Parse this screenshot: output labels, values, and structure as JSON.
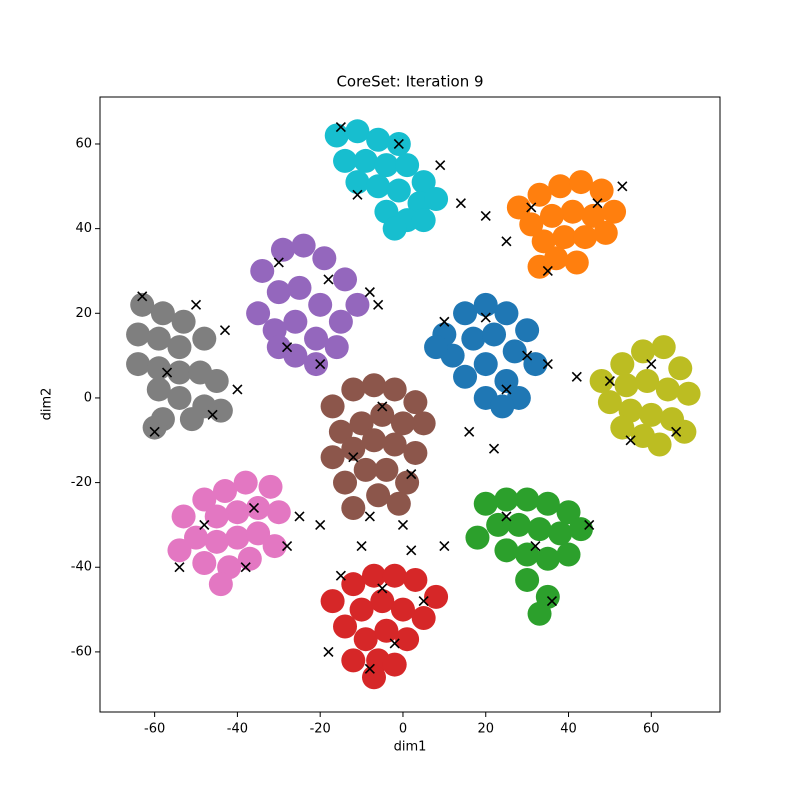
{
  "chart_data": {
    "type": "scatter",
    "title": "CoreSet: Iteration 9",
    "x_label": "dim1",
    "y_label": "dim2",
    "xlim": [
      -73.2,
      76.6
    ],
    "ylim": [
      -74.2,
      71.1
    ],
    "xticks": [
      -60,
      -40,
      -20,
      0,
      20,
      40,
      60
    ],
    "yticks": [
      -60,
      -40,
      -20,
      0,
      20,
      40,
      60
    ],
    "grid": false,
    "series": [
      {
        "color": "#1f77b4",
        "marker": "o",
        "x": [
          10,
          15,
          20,
          25,
          30,
          12,
          17,
          22,
          27,
          32,
          15,
          20,
          25,
          20,
          28,
          8,
          24
        ],
        "y": [
          15,
          20,
          22,
          20,
          16,
          10,
          14,
          15,
          11,
          8,
          5,
          8,
          4,
          0,
          0,
          12,
          -2
        ]
      },
      {
        "color": "#ff7f0e",
        "marker": "o",
        "x": [
          28,
          33,
          38,
          43,
          48,
          51,
          46,
          41,
          36,
          31,
          34,
          39,
          44,
          49,
          37,
          42,
          33
        ],
        "y": [
          45,
          48,
          50,
          51,
          49,
          44,
          43,
          44,
          43,
          41,
          37,
          38,
          38,
          39,
          33,
          32,
          31
        ]
      },
      {
        "color": "#2ca02c",
        "marker": "o",
        "x": [
          20,
          25,
          30,
          35,
          40,
          43,
          38,
          33,
          28,
          23,
          18,
          25,
          30,
          35,
          40,
          30,
          35,
          33
        ],
        "y": [
          -25,
          -24,
          -24,
          -25,
          -27,
          -31,
          -32,
          -31,
          -30,
          -30,
          -33,
          -36,
          -37,
          -38,
          -37,
          -43,
          -47,
          -51
        ]
      },
      {
        "color": "#d62728",
        "marker": "o",
        "x": [
          -17,
          -12,
          -7,
          -2,
          3,
          8,
          5,
          0,
          -5,
          -10,
          -14,
          -9,
          -4,
          1,
          -12,
          -6,
          -2,
          -7
        ],
        "y": [
          -48,
          -44,
          -42,
          -42,
          -43,
          -47,
          -52,
          -50,
          -48,
          -50,
          -54,
          -57,
          -55,
          -57,
          -62,
          -62,
          -63,
          -66
        ]
      },
      {
        "color": "#9467bd",
        "marker": "o",
        "x": [
          -34,
          -29,
          -24,
          -19,
          -14,
          -11,
          -15,
          -20,
          -25,
          -30,
          -35,
          -31,
          -26,
          -21,
          -16,
          -26,
          -21,
          -30
        ],
        "y": [
          30,
          35,
          36,
          33,
          28,
          22,
          18,
          22,
          26,
          25,
          20,
          16,
          18,
          14,
          12,
          10,
          8,
          12
        ]
      },
      {
        "color": "#8c564b",
        "marker": "o",
        "x": [
          -17,
          -12,
          -7,
          -2,
          3,
          5,
          0,
          -5,
          -10,
          -15,
          -17,
          -12,
          -7,
          -2,
          3,
          -14,
          -9,
          -4,
          1,
          -12,
          -6,
          -1
        ],
        "y": [
          -2,
          2,
          3,
          2,
          -1,
          -6,
          -6,
          -4,
          -6,
          -8,
          -14,
          -12,
          -10,
          -11,
          -13,
          -20,
          -17,
          -17,
          -20,
          -26,
          -23,
          -25
        ]
      },
      {
        "color": "#e377c2",
        "marker": "o",
        "x": [
          -53,
          -48,
          -43,
          -38,
          -32,
          -30,
          -35,
          -40,
          -45,
          -50,
          -54,
          -45,
          -40,
          -35,
          -31,
          -48,
          -42,
          -37,
          -44
        ],
        "y": [
          -28,
          -24,
          -22,
          -20,
          -21,
          -27,
          -26,
          -27,
          -28,
          -33,
          -36,
          -34,
          -33,
          -32,
          -35,
          -39,
          -40,
          -38,
          -44
        ]
      },
      {
        "color": "#7f7f7f",
        "marker": "o",
        "x": [
          -63,
          -58,
          -53,
          -48,
          -64,
          -59,
          -54,
          -64,
          -59,
          -54,
          -49,
          -45,
          -59,
          -54,
          -48,
          -44,
          -58,
          -51,
          -60
        ],
        "y": [
          22,
          20,
          18,
          14,
          15,
          14,
          12,
          8,
          7,
          6,
          6,
          4,
          2,
          0,
          -2,
          -3,
          -5,
          -5,
          -7
        ]
      },
      {
        "color": "#bcbd22",
        "marker": "o",
        "x": [
          48,
          53,
          58,
          63,
          67,
          69,
          64,
          59,
          54,
          50,
          55,
          60,
          65,
          68,
          58,
          62,
          53
        ],
        "y": [
          4,
          8,
          11,
          12,
          7,
          1,
          2,
          4,
          3,
          -1,
          -3,
          -4,
          -5,
          -8,
          -9,
          -11,
          -7
        ]
      },
      {
        "color": "#17becf",
        "marker": "o",
        "x": [
          -16,
          -11,
          -6,
          -1,
          -14,
          -9,
          -4,
          1,
          5,
          -11,
          -6,
          -1,
          4,
          8,
          -4,
          1,
          -2,
          5
        ],
        "y": [
          62,
          63,
          61,
          60,
          56,
          56,
          55,
          55,
          51,
          51,
          50,
          49,
          46,
          47,
          44,
          42,
          40,
          42
        ]
      },
      {
        "color": "#000000",
        "marker": "x",
        "x": [
          -15,
          -1,
          9,
          -11,
          14,
          20,
          25,
          31,
          53,
          35,
          47,
          -30,
          -18,
          -8,
          -6,
          -28,
          -20,
          -63,
          -50,
          -43,
          -57,
          -46,
          -60,
          -40,
          10,
          20,
          30,
          25,
          35,
          42,
          50,
          60,
          66,
          55,
          16,
          22,
          -5,
          -12,
          2,
          -8,
          0,
          -20,
          -28,
          -36,
          -48,
          -54,
          -38,
          25,
          32,
          36,
          45,
          -15,
          -5,
          5,
          -2,
          -8,
          -18,
          10,
          -10,
          2,
          -25
        ],
        "y": [
          64,
          60,
          55,
          48,
          46,
          43,
          37,
          45,
          50,
          30,
          46,
          32,
          28,
          25,
          22,
          12,
          8,
          24,
          22,
          16,
          6,
          -4,
          -8,
          2,
          18,
          19,
          10,
          2,
          8,
          5,
          4,
          8,
          -8,
          -10,
          -8,
          -12,
          -2,
          -14,
          -18,
          -28,
          -30,
          -30,
          -35,
          -26,
          -30,
          -40,
          -40,
          -28,
          -35,
          -48,
          -30,
          -42,
          -45,
          -48,
          -58,
          -64,
          -60,
          -35,
          -35,
          -36,
          -28
        ]
      }
    ]
  }
}
